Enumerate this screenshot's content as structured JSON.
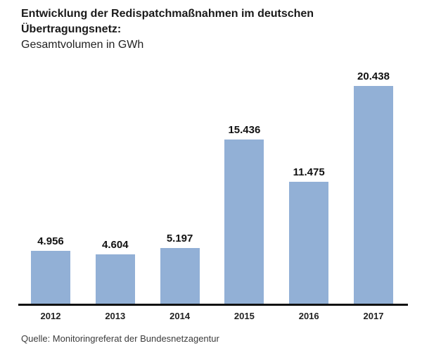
{
  "title": {
    "line1": "Entwicklung der Redispatchmaßnahmen im deutschen",
    "line2": "Übertragungsnetz:",
    "subtitle": "Gesamtvolumen in GWh"
  },
  "source": "Quelle: Monitoringreferat der Bundesnetzagentur",
  "colors": {
    "bar": "#92b0d6",
    "axis": "#111111",
    "text": "#1a1a1a"
  },
  "chart_data": {
    "type": "bar",
    "title": "Entwicklung der Redispatchmaßnahmen im deutschen Übertragungsnetz: Gesamtvolumen in GWh",
    "unit": "GWh",
    "categories": [
      "2012",
      "2013",
      "2014",
      "2015",
      "2016",
      "2017"
    ],
    "values": [
      4956,
      4604,
      5197,
      15436,
      11475,
      20438
    ],
    "value_labels": [
      "4.956",
      "4.604",
      "5.197",
      "15.436",
      "11.475",
      "20.438"
    ],
    "xlabel": "",
    "ylabel": "Gesamtvolumen in GWh",
    "ylim": [
      0,
      22000
    ],
    "grid": false,
    "legend": null,
    "y_axis_visible": false,
    "bar_labels_position": "above"
  }
}
